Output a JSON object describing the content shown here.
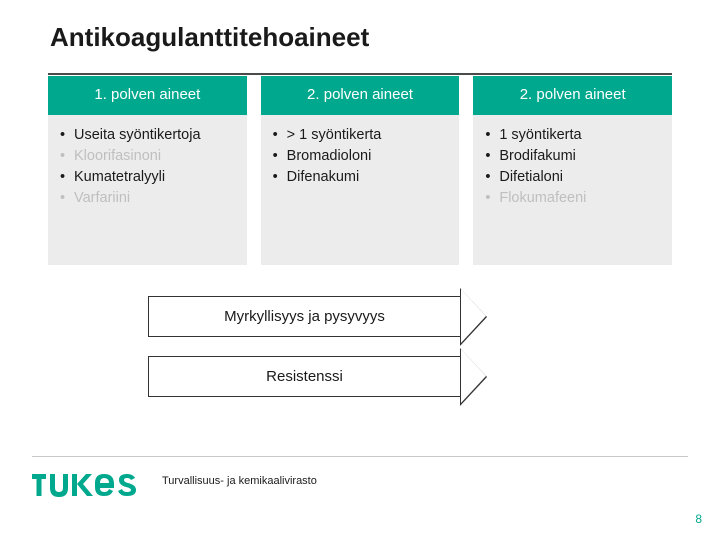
{
  "title": "Antikoagulanttitehoaineet",
  "columns": [
    {
      "header": "1. polven aineet",
      "items": [
        {
          "text": "Useita syöntikertoja",
          "muted": false
        },
        {
          "text": "Kloorifasinoni",
          "muted": true
        },
        {
          "text": "Kumatetralyyli",
          "muted": false
        },
        {
          "text": "Varfariini",
          "muted": true
        }
      ]
    },
    {
      "header": "2. polven aineet",
      "items": [
        {
          "text": "> 1 syöntikerta",
          "muted": false
        },
        {
          "text": "Bromadioloni",
          "muted": false
        },
        {
          "text": "Difenakumi",
          "muted": false
        }
      ]
    },
    {
      "header": "2. polven aineet",
      "items": [
        {
          "text": "1 syöntikerta",
          "muted": false
        },
        {
          "text": "Brodifakumi",
          "muted": false
        },
        {
          "text": "Difetialoni",
          "muted": false
        },
        {
          "text": "Flokumafeeni",
          "muted": true
        }
      ]
    }
  ],
  "arrows": {
    "a1": "Myrkyllisyys ja pysyvyys",
    "a2": "Resistenssi"
  },
  "footer": {
    "caption": "Turvallisuus- ja kemikaalivirasto",
    "page": "8"
  },
  "colors": {
    "accent": "#00a88e",
    "muted": "#bfbfbf",
    "panel": "#ececec",
    "text": "#1a1a1a"
  }
}
